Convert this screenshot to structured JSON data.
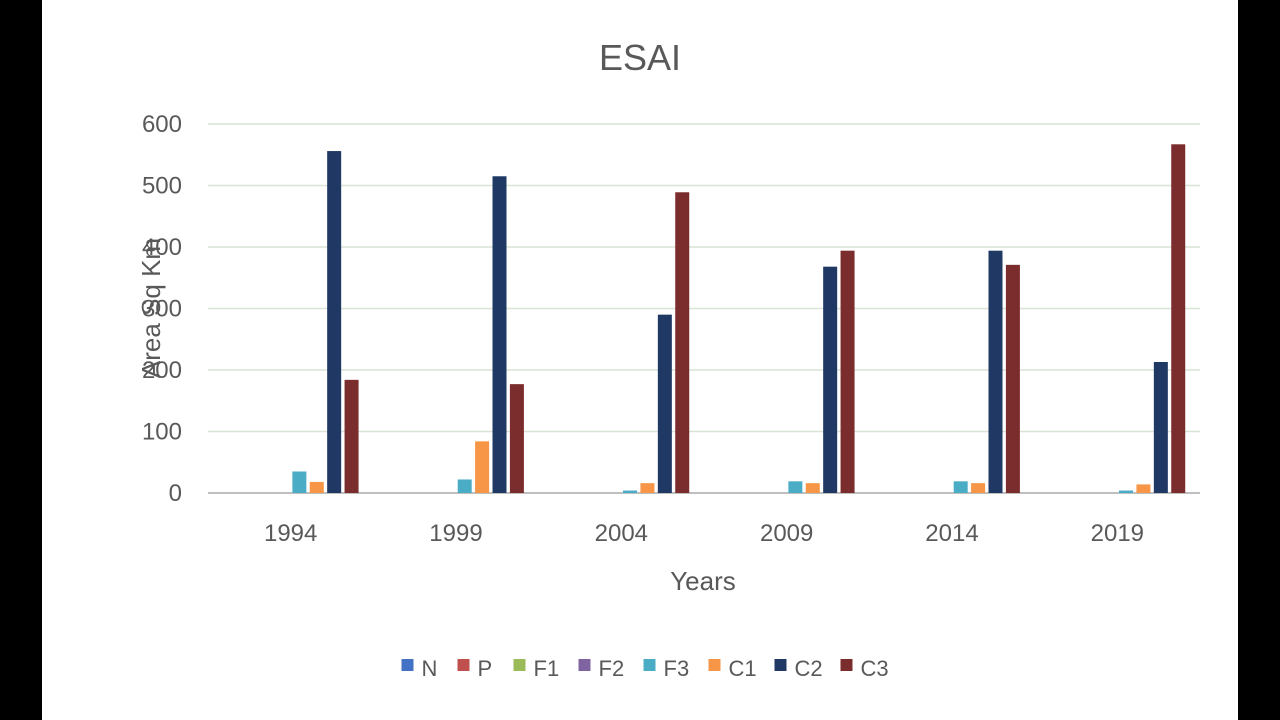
{
  "chart_data": {
    "type": "bar",
    "title": "ESAI",
    "xlabel": "Years",
    "ylabel": "Area Sq Km",
    "categories": [
      "1994",
      "1999",
      "2004",
      "2009",
      "2014",
      "2019"
    ],
    "ylim": [
      0,
      600
    ],
    "yticks": [
      0,
      100,
      200,
      300,
      400,
      500,
      600
    ],
    "grid": true,
    "legend_position": "bottom",
    "series": [
      {
        "name": "N",
        "color": "#4472c4",
        "values": [
          0,
          0,
          0,
          0,
          0,
          0
        ]
      },
      {
        "name": "P",
        "color": "#c0504d",
        "values": [
          0,
          0,
          0,
          0,
          0,
          0
        ]
      },
      {
        "name": "F1",
        "color": "#9bbb59",
        "values": [
          0,
          0,
          0,
          0,
          0,
          0
        ]
      },
      {
        "name": "F2",
        "color": "#8064a2",
        "values": [
          0,
          0,
          0,
          0,
          0,
          0
        ]
      },
      {
        "name": "F3",
        "color": "#4bacc6",
        "values": [
          35,
          22,
          4,
          19,
          19,
          4
        ]
      },
      {
        "name": "C1",
        "color": "#f79646",
        "values": [
          18,
          84,
          16,
          16,
          16,
          14
        ]
      },
      {
        "name": "C2",
        "color": "#1f3864",
        "values": [
          556,
          515,
          290,
          368,
          394,
          213
        ]
      },
      {
        "name": "C3",
        "color": "#7b2c2c",
        "values": [
          184,
          177,
          489,
          394,
          371,
          567
        ]
      }
    ]
  }
}
